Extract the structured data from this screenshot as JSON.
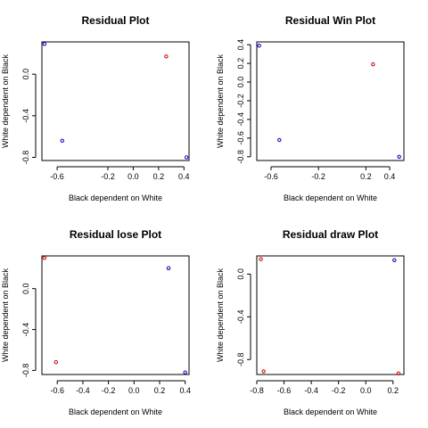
{
  "chart_data": [
    {
      "type": "scatter",
      "title": "Residual Plot",
      "xlabel": "Black dependent on White",
      "ylabel": "White dependent on Black",
      "xlim": [
        -0.72,
        0.44
      ],
      "ylim": [
        -0.83,
        0.31
      ],
      "xticks": [
        -0.6,
        -0.2,
        0.0,
        0.2,
        0.4
      ],
      "xtick_labels": [
        "-0.6",
        "-0.2",
        "0.0",
        "0.2",
        "0.4"
      ],
      "yticks": [
        0.0,
        -0.4,
        -0.8
      ],
      "ytick_labels": [
        "0.0",
        "-0.4",
        "-0.8"
      ],
      "points": [
        {
          "x": -0.7,
          "y": 0.29,
          "color": "#0000cc"
        },
        {
          "x": -0.56,
          "y": -0.64,
          "color": "#0000cc"
        },
        {
          "x": 0.26,
          "y": 0.17,
          "color": "#cc0000"
        },
        {
          "x": 0.42,
          "y": -0.8,
          "color": "#0000cc"
        }
      ]
    },
    {
      "type": "scatter",
      "title": "Residual Win Plot",
      "xlabel": "Black dependent on White",
      "ylabel": "White dependent on Black",
      "xlim": [
        -0.72,
        0.52
      ],
      "ylim": [
        -0.84,
        0.43
      ],
      "xticks": [
        -0.6,
        -0.2,
        0.2,
        0.4
      ],
      "xtick_labels": [
        "-0.6",
        "-0.2",
        "0.2",
        "0.4"
      ],
      "yticks": [
        0.4,
        0.2,
        0.0,
        -0.2,
        -0.4,
        -0.6,
        -0.8
      ],
      "ytick_labels": [
        "0.4",
        "0.2",
        "0.0",
        "-0.2",
        "-0.4",
        "-0.6",
        "-0.8"
      ],
      "points": [
        {
          "x": -0.7,
          "y": 0.39,
          "color": "#0000cc"
        },
        {
          "x": -0.53,
          "y": -0.62,
          "color": "#0000cc"
        },
        {
          "x": 0.26,
          "y": 0.19,
          "color": "#cc0000"
        },
        {
          "x": 0.48,
          "y": -0.8,
          "color": "#0000cc"
        }
      ]
    },
    {
      "type": "scatter",
      "title": "Residual lose Plot",
      "xlabel": "Black dependent on White",
      "ylabel": "White dependent on Black",
      "xlim": [
        -0.72,
        0.43
      ],
      "ylim": [
        -0.84,
        0.32
      ],
      "xticks": [
        -0.6,
        -0.4,
        -0.2,
        0.0,
        0.2,
        0.4
      ],
      "xtick_labels": [
        "-0.6",
        "-0.4",
        "-0.2",
        "0.0",
        "0.2",
        "0.4"
      ],
      "yticks": [
        0.0,
        -0.4,
        -0.8
      ],
      "ytick_labels": [
        "0.0",
        "-0.4",
        "-0.8"
      ],
      "points": [
        {
          "x": -0.7,
          "y": 0.3,
          "color": "#cc0000"
        },
        {
          "x": -0.61,
          "y": -0.72,
          "color": "#cc0000"
        },
        {
          "x": 0.27,
          "y": 0.2,
          "color": "#0000cc"
        },
        {
          "x": 0.4,
          "y": -0.82,
          "color": "#0000cc"
        }
      ]
    },
    {
      "type": "scatter",
      "title": "Residual draw Plot",
      "xlabel": "Black dependent on White",
      "ylabel": "White dependent on Black",
      "xlim": [
        -0.8,
        0.28
      ],
      "ylim": [
        -0.94,
        0.17
      ],
      "xticks": [
        -0.8,
        -0.6,
        -0.4,
        -0.2,
        0.0,
        0.2
      ],
      "xtick_labels": [
        "-0.8",
        "-0.6",
        "-0.4",
        "-0.2",
        "0.0",
        "0.2"
      ],
      "yticks": [
        0.0,
        -0.4,
        -0.8
      ],
      "ytick_labels": [
        "0.0",
        "-0.4",
        "-0.8"
      ],
      "points": [
        {
          "x": -0.77,
          "y": 0.14,
          "color": "#cc0000"
        },
        {
          "x": -0.75,
          "y": -0.91,
          "color": "#cc0000"
        },
        {
          "x": 0.21,
          "y": 0.13,
          "color": "#0000cc"
        },
        {
          "x": 0.24,
          "y": -0.93,
          "color": "#cc0000"
        }
      ]
    }
  ]
}
